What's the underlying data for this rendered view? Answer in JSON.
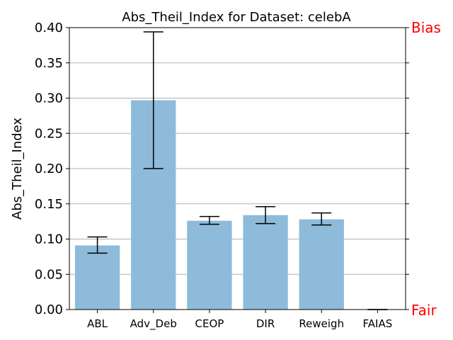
{
  "chart_data": {
    "type": "bar",
    "title": "Abs_Theil_Index for Dataset: celebA",
    "xlabel": "",
    "ylabel": "Abs_Theil_Index",
    "categories": [
      "ABL",
      "Adv_Deb",
      "CEOP",
      "DIR",
      "Reweigh",
      "FAIAS"
    ],
    "values": [
      0.091,
      0.297,
      0.126,
      0.134,
      0.128,
      0.0
    ],
    "error_low": [
      0.08,
      0.2,
      0.121,
      0.122,
      0.12,
      0.0
    ],
    "error_high": [
      0.103,
      0.394,
      0.132,
      0.146,
      0.137,
      0.0
    ],
    "ylim": [
      0,
      0.4
    ],
    "yticks": [
      0.0,
      0.05,
      0.1,
      0.15,
      0.2,
      0.25,
      0.3,
      0.35,
      0.4
    ],
    "ytick_labels": [
      "0.00",
      "0.05",
      "0.10",
      "0.15",
      "0.20",
      "0.25",
      "0.30",
      "0.35",
      "0.40"
    ],
    "grid": "horizontal",
    "right_axis_labels": {
      "top": "Bias",
      "bottom": "Fair"
    },
    "colors": {
      "bar": "#8fbbda",
      "error": "#000000",
      "grid": "#b0b0b0",
      "side_label": "#ff0000"
    }
  }
}
